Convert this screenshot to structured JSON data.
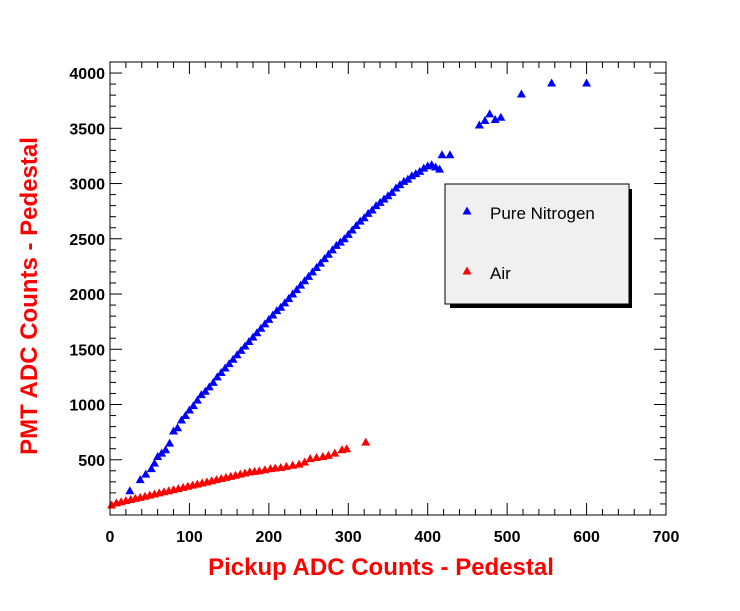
{
  "chart_data": {
    "type": "scatter",
    "xlabel": "Pickup ADC Counts - Pedestal",
    "ylabel": "PMT ADC Counts - Pedestal",
    "xlim": [
      0,
      700
    ],
    "ylim": [
      0,
      4100
    ],
    "xticks": [
      0,
      100,
      200,
      300,
      400,
      500,
      600,
      700
    ],
    "yticks": [
      500,
      1000,
      1500,
      2000,
      2500,
      3000,
      3500,
      4000
    ],
    "grid": false,
    "legend_position": "right",
    "title_color": "#ff0000",
    "series": [
      {
        "name": "Pure Nitrogen",
        "color": "#0000ff",
        "marker": "triangle",
        "points": [
          [
            25,
            220
          ],
          [
            38,
            320
          ],
          [
            45,
            370
          ],
          [
            52,
            420
          ],
          [
            56,
            470
          ],
          [
            60,
            530
          ],
          [
            65,
            560
          ],
          [
            70,
            590
          ],
          [
            75,
            650
          ],
          [
            80,
            760
          ],
          [
            85,
            790
          ],
          [
            90,
            860
          ],
          [
            95,
            900
          ],
          [
            100,
            950
          ],
          [
            105,
            990
          ],
          [
            110,
            1040
          ],
          [
            115,
            1090
          ],
          [
            120,
            1120
          ],
          [
            125,
            1160
          ],
          [
            130,
            1200
          ],
          [
            135,
            1250
          ],
          [
            140,
            1290
          ],
          [
            145,
            1330
          ],
          [
            150,
            1370
          ],
          [
            155,
            1410
          ],
          [
            160,
            1450
          ],
          [
            165,
            1490
          ],
          [
            170,
            1530
          ],
          [
            175,
            1570
          ],
          [
            180,
            1610
          ],
          [
            185,
            1650
          ],
          [
            190,
            1690
          ],
          [
            195,
            1730
          ],
          [
            200,
            1770
          ],
          [
            205,
            1810
          ],
          [
            210,
            1850
          ],
          [
            215,
            1880
          ],
          [
            220,
            1920
          ],
          [
            225,
            1960
          ],
          [
            230,
            2000
          ],
          [
            235,
            2040
          ],
          [
            240,
            2080
          ],
          [
            245,
            2120
          ],
          [
            250,
            2160
          ],
          [
            255,
            2200
          ],
          [
            260,
            2240
          ],
          [
            265,
            2280
          ],
          [
            270,
            2320
          ],
          [
            275,
            2360
          ],
          [
            280,
            2400
          ],
          [
            285,
            2440
          ],
          [
            290,
            2470
          ],
          [
            295,
            2500
          ],
          [
            300,
            2540
          ],
          [
            305,
            2580
          ],
          [
            310,
            2620
          ],
          [
            315,
            2660
          ],
          [
            320,
            2690
          ],
          [
            325,
            2730
          ],
          [
            330,
            2760
          ],
          [
            335,
            2800
          ],
          [
            340,
            2830
          ],
          [
            345,
            2860
          ],
          [
            350,
            2890
          ],
          [
            355,
            2920
          ],
          [
            360,
            2960
          ],
          [
            365,
            2990
          ],
          [
            370,
            3020
          ],
          [
            375,
            3040
          ],
          [
            380,
            3070
          ],
          [
            385,
            3090
          ],
          [
            390,
            3110
          ],
          [
            395,
            3140
          ],
          [
            400,
            3160
          ],
          [
            405,
            3170
          ],
          [
            410,
            3150
          ],
          [
            415,
            3130
          ],
          [
            418,
            3260
          ],
          [
            428,
            3260
          ],
          [
            465,
            3530
          ],
          [
            472,
            3570
          ],
          [
            478,
            3630
          ],
          [
            485,
            3580
          ],
          [
            492,
            3600
          ],
          [
            518,
            3810
          ],
          [
            556,
            3910
          ],
          [
            600,
            3910
          ]
        ]
      },
      {
        "name": "Air",
        "color": "#ff0000",
        "marker": "triangle",
        "points": [
          [
            2,
            90
          ],
          [
            8,
            110
          ],
          [
            14,
            120
          ],
          [
            20,
            130
          ],
          [
            26,
            140
          ],
          [
            32,
            150
          ],
          [
            38,
            160
          ],
          [
            44,
            170
          ],
          [
            50,
            180
          ],
          [
            56,
            190
          ],
          [
            62,
            200
          ],
          [
            68,
            210
          ],
          [
            74,
            220
          ],
          [
            80,
            230
          ],
          [
            86,
            240
          ],
          [
            92,
            250
          ],
          [
            98,
            260
          ],
          [
            104,
            270
          ],
          [
            110,
            280
          ],
          [
            116,
            290
          ],
          [
            122,
            300
          ],
          [
            128,
            310
          ],
          [
            134,
            320
          ],
          [
            140,
            330
          ],
          [
            146,
            340
          ],
          [
            152,
            350
          ],
          [
            158,
            360
          ],
          [
            164,
            370
          ],
          [
            170,
            380
          ],
          [
            176,
            390
          ],
          [
            182,
            395
          ],
          [
            188,
            400
          ],
          [
            195,
            410
          ],
          [
            202,
            420
          ],
          [
            208,
            425
          ],
          [
            215,
            430
          ],
          [
            222,
            440
          ],
          [
            230,
            450
          ],
          [
            238,
            460
          ],
          [
            245,
            480
          ],
          [
            252,
            510
          ],
          [
            260,
            520
          ],
          [
            268,
            530
          ],
          [
            275,
            540
          ],
          [
            283,
            560
          ],
          [
            292,
            590
          ],
          [
            298,
            600
          ],
          [
            322,
            660
          ]
        ]
      }
    ]
  }
}
